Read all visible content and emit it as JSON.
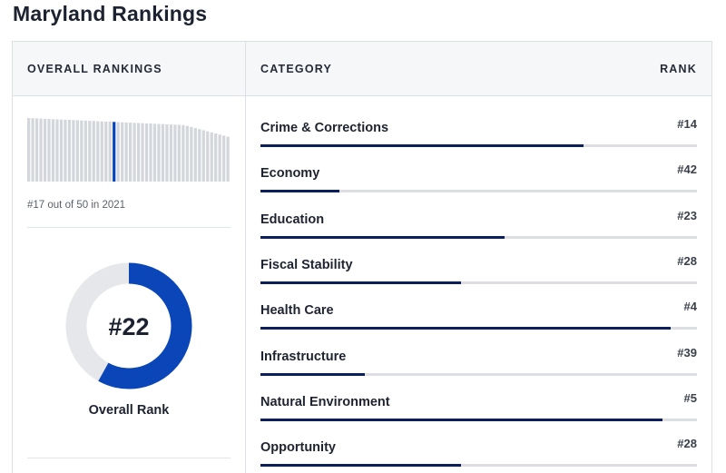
{
  "page_title": "Maryland Rankings",
  "header": {
    "overall_label": "OVERALL RANKINGS",
    "category_label": "CATEGORY",
    "rank_label": "RANK"
  },
  "overall": {
    "subtitle": "#17 out of 50 in 2021",
    "donut_value": "#22",
    "donut_label": "Overall Rank",
    "donut_fraction": 0.58,
    "donut_color": "#0a46b8",
    "donut_track_color": "#e5e7ea",
    "mini_chart_highlight_index": 21,
    "mini_chart_count": 50,
    "mini_chart_highlight_color": "#0a46b8",
    "mini_chart_bar_color": "#d3d6da"
  },
  "categories": [
    {
      "name": "Crime & Corrections",
      "rank": "#14",
      "fill": 0.74
    },
    {
      "name": "Economy",
      "rank": "#42",
      "fill": 0.18
    },
    {
      "name": "Education",
      "rank": "#23",
      "fill": 0.56
    },
    {
      "name": "Fiscal Stability",
      "rank": "#28",
      "fill": 0.46
    },
    {
      "name": "Health Care",
      "rank": "#4",
      "fill": 0.94
    },
    {
      "name": "Infrastructure",
      "rank": "#39",
      "fill": 0.24
    },
    {
      "name": "Natural Environment",
      "rank": "#5",
      "fill": 0.92
    },
    {
      "name": "Opportunity",
      "rank": "#28",
      "fill": 0.46
    }
  ]
}
